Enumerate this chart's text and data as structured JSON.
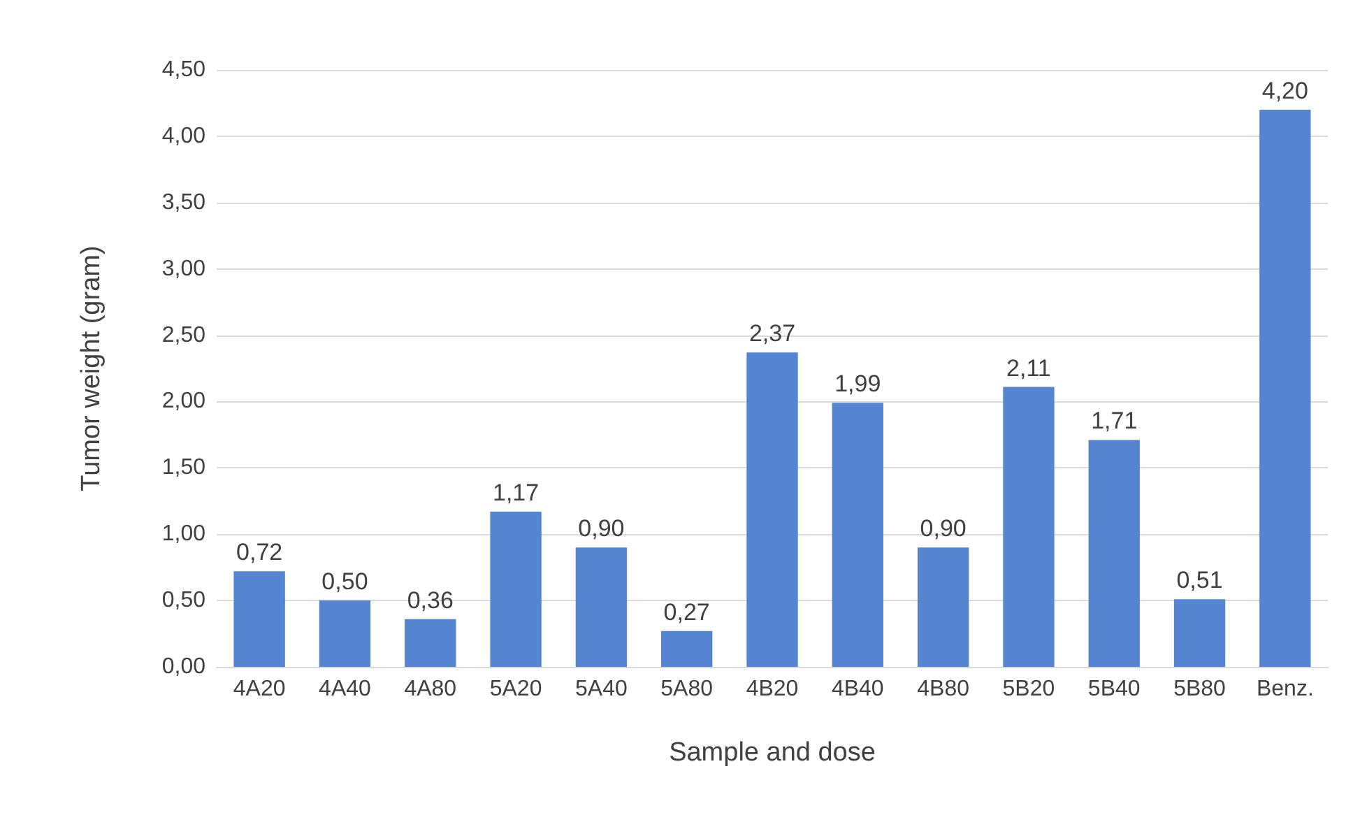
{
  "chart_data": {
    "type": "bar",
    "xlabel": "Sample and dose",
    "ylabel": "Tumor weight (gram)",
    "categories": [
      "4A20",
      "4A40",
      "4A80",
      "5A20",
      "5A40",
      "5A80",
      "4B20",
      "4B40",
      "4B80",
      "5B20",
      "5B40",
      "5B80",
      "Benz."
    ],
    "values": [
      0.72,
      0.5,
      0.36,
      1.17,
      0.9,
      0.27,
      2.37,
      1.99,
      0.9,
      2.11,
      1.71,
      0.51,
      4.2
    ],
    "value_labels": [
      "0,72",
      "0,50",
      "0,36",
      "1,17",
      "0,90",
      "0,27",
      "2,37",
      "1,99",
      "0,90",
      "2,11",
      "1,71",
      "0,51",
      "4,20"
    ],
    "color": "#5585d0",
    "ylim": [
      0,
      4.5
    ],
    "yticks": [
      {
        "value": 0,
        "label": "0,00"
      },
      {
        "value": 0.5,
        "label": "0,50"
      },
      {
        "value": 1,
        "label": "1,00"
      },
      {
        "value": 1.5,
        "label": "1,50"
      },
      {
        "value": 2,
        "label": "2,00"
      },
      {
        "value": 2.5,
        "label": "2,50"
      },
      {
        "value": 3,
        "label": "3,00"
      },
      {
        "value": 3.5,
        "label": "3,50"
      },
      {
        "value": 4,
        "label": "4,00"
      },
      {
        "value": 4.5,
        "label": "4,50"
      }
    ],
    "grid": "y"
  }
}
